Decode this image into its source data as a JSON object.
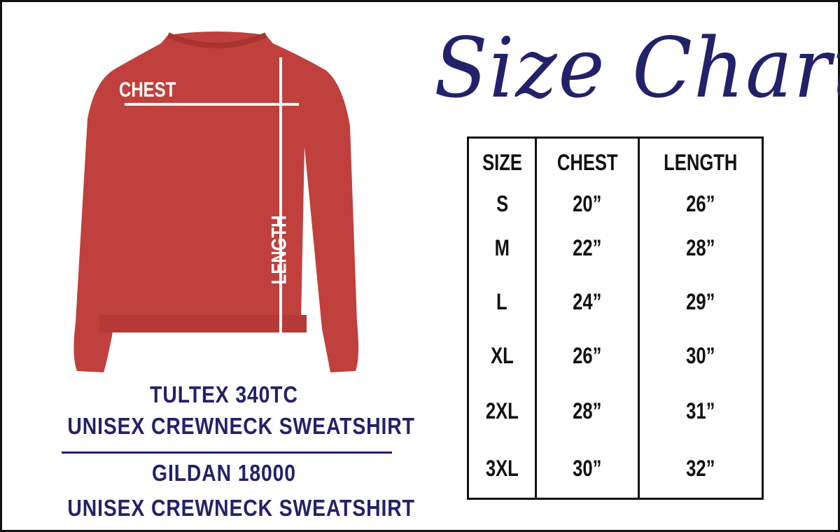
{
  "title": "Size Chart",
  "overlay": {
    "chest_label": "CHEST",
    "length_label": "LENGTH"
  },
  "products": [
    {
      "brand": "TULTEX 340TC",
      "name": "UNISEX CREWNECK SWEATSHIRT"
    },
    {
      "brand": "GILDAN 18000",
      "name": "UNISEX CREWNECK SWEATSHIRT"
    }
  ],
  "table": {
    "headers": [
      "SIZE",
      "CHEST",
      "LENGTH"
    ],
    "rows": [
      [
        "S",
        "20”",
        "26”"
      ],
      [
        "M",
        "22”",
        "28”"
      ],
      [
        "L",
        "24”",
        "29”"
      ],
      [
        "XL",
        "26”",
        "30”"
      ],
      [
        "2XL",
        "28”",
        "31”"
      ],
      [
        "3XL",
        "30”",
        "32”"
      ]
    ]
  },
  "colors": {
    "navy": "#22226a",
    "shirt": "#c0403d"
  }
}
